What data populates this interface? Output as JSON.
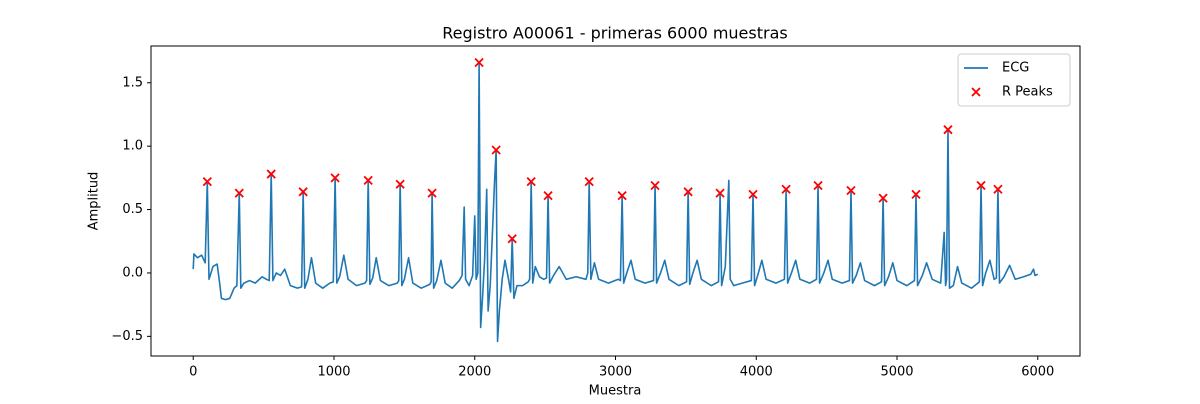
{
  "chart_data": {
    "type": "line",
    "title": "Registro A00061 - primeras 6000 muestras",
    "xlabel": "Muestra",
    "ylabel": "Amplitud",
    "xlim": [
      -300,
      6300
    ],
    "ylim": [
      -0.655,
      1.79
    ],
    "xticks": [
      0,
      1000,
      2000,
      3000,
      4000,
      5000,
      6000
    ],
    "yticks": [
      {
        "value": -0.5,
        "label": "−0.5"
      },
      {
        "value": 0,
        "label": "0.0"
      },
      {
        "value": 0.5,
        "label": "0.5"
      },
      {
        "value": 1,
        "label": "1.0"
      },
      {
        "value": 1.5,
        "label": "1.5"
      }
    ],
    "legend": "upper right",
    "series": [
      {
        "name": "ECG",
        "color": "#1f77b4",
        "marker": "line",
        "x": [
          0,
          5,
          30,
          60,
          85,
          100,
          112,
          140,
          170,
          190,
          200,
          230,
          260,
          290,
          310,
          327,
          338,
          360,
          400,
          440,
          490,
          520,
          540,
          554,
          566,
          590,
          620,
          650,
          690,
          740,
          770,
          781,
          792,
          815,
          840,
          870,
          920,
          970,
          995,
          1008,
          1020,
          1040,
          1070,
          1100,
          1160,
          1220,
          1232,
          1243,
          1255,
          1275,
          1300,
          1330,
          1390,
          1450,
          1460,
          1470,
          1482,
          1500,
          1530,
          1560,
          1620,
          1680,
          1690,
          1697,
          1708,
          1730,
          1760,
          1790,
          1840,
          1890,
          1910,
          1925,
          1935,
          1960,
          1985,
          2000,
          2010,
          2022,
          2031,
          2042,
          2055,
          2070,
          2085,
          2095,
          2110,
          2125,
          2140,
          2152,
          2162,
          2175,
          2195,
          2215,
          2240,
          2255,
          2266,
          2278,
          2300,
          2340,
          2380,
          2390,
          2401,
          2412,
          2430,
          2460,
          2490,
          2510,
          2521,
          2532,
          2560,
          2600,
          2650,
          2720,
          2790,
          2803,
          2813,
          2825,
          2850,
          2880,
          2950,
          3020,
          3035,
          3047,
          3058,
          3080,
          3110,
          3140,
          3210,
          3270,
          3281,
          3292,
          3320,
          3350,
          3380,
          3450,
          3505,
          3516,
          3527,
          3550,
          3580,
          3610,
          3680,
          3732,
          3743,
          3754,
          3780,
          3805,
          3815,
          3840,
          3900,
          3965,
          3977,
          3988,
          4010,
          4040,
          4070,
          4140,
          4200,
          4212,
          4223,
          4250,
          4280,
          4310,
          4380,
          4428,
          4439,
          4450,
          4480,
          4510,
          4540,
          4610,
          4662,
          4673,
          4684,
          4710,
          4740,
          4770,
          4840,
          4890,
          4901,
          4912,
          4940,
          4970,
          5000,
          5070,
          5124,
          5135,
          5146,
          5180,
          5210,
          5250,
          5310,
          5335,
          5345,
          5352,
          5362,
          5373,
          5400,
          5430,
          5460,
          5530,
          5585,
          5597,
          5608,
          5630,
          5660,
          5690,
          5706,
          5717,
          5728,
          5760,
          5800,
          5840,
          5900,
          5950,
          5970,
          5980,
          6000
        ],
        "values": [
          0.03,
          0.15,
          0.12,
          0.14,
          0.08,
          0.72,
          -0.05,
          0.05,
          0.07,
          -0.1,
          -0.2,
          -0.21,
          -0.2,
          -0.12,
          -0.1,
          0.63,
          -0.12,
          -0.08,
          -0.06,
          -0.08,
          -0.03,
          -0.05,
          -0.06,
          0.78,
          -0.06,
          0.0,
          -0.02,
          0.03,
          -0.1,
          -0.12,
          -0.11,
          0.64,
          -0.12,
          -0.05,
          0.12,
          -0.08,
          -0.12,
          -0.08,
          -0.07,
          0.75,
          -0.08,
          -0.03,
          0.14,
          -0.05,
          -0.1,
          -0.08,
          -0.06,
          0.73,
          -0.09,
          -0.04,
          0.12,
          -0.06,
          -0.1,
          -0.08,
          -0.06,
          0.7,
          -0.1,
          -0.05,
          0.12,
          -0.08,
          -0.12,
          -0.09,
          -0.07,
          0.63,
          -0.12,
          -0.06,
          0.1,
          -0.08,
          -0.12,
          -0.06,
          -0.02,
          0.52,
          -0.05,
          -0.1,
          -0.02,
          0.45,
          -0.05,
          0.0,
          1.66,
          -0.43,
          -0.2,
          0.1,
          0.66,
          -0.3,
          -0.1,
          0.3,
          0.7,
          0.97,
          -0.54,
          -0.3,
          -0.05,
          0.1,
          -0.05,
          -0.15,
          0.27,
          -0.2,
          -0.1,
          -0.1,
          -0.07,
          -0.05,
          0.72,
          -0.08,
          0.05,
          -0.03,
          -0.05,
          -0.04,
          0.61,
          -0.08,
          -0.02,
          0.05,
          -0.05,
          -0.03,
          -0.05,
          0.0,
          0.72,
          -0.05,
          0.08,
          -0.05,
          -0.08,
          -0.05,
          -0.06,
          0.61,
          -0.08,
          0.0,
          0.1,
          -0.05,
          -0.08,
          -0.06,
          0.69,
          -0.08,
          0.0,
          0.1,
          -0.05,
          -0.1,
          -0.07,
          0.64,
          -0.09,
          0.0,
          0.1,
          -0.05,
          -0.1,
          -0.07,
          0.63,
          -0.1,
          0.05,
          0.73,
          -0.05,
          -0.1,
          -0.08,
          -0.06,
          0.62,
          -0.1,
          -0.02,
          0.1,
          -0.05,
          -0.08,
          -0.05,
          0.66,
          -0.08,
          0.0,
          0.1,
          -0.05,
          -0.08,
          -0.05,
          0.69,
          -0.08,
          0.0,
          0.1,
          -0.05,
          -0.08,
          -0.06,
          0.65,
          -0.08,
          -0.02,
          0.08,
          -0.06,
          -0.1,
          -0.07,
          0.59,
          -0.1,
          -0.03,
          0.08,
          -0.06,
          -0.1,
          -0.06,
          0.62,
          -0.1,
          -0.02,
          0.08,
          -0.05,
          -0.08,
          0.32,
          -0.1,
          -0.05,
          1.13,
          -0.12,
          -0.1,
          0.05,
          -0.08,
          -0.12,
          -0.07,
          0.69,
          -0.1,
          0.0,
          0.1,
          -0.05,
          -0.04,
          0.66,
          -0.08,
          -0.03,
          0.06,
          -0.05,
          -0.03,
          -0.01,
          0.03,
          -0.02,
          -0.01
        ]
      },
      {
        "name": "R Peaks",
        "color": "#ff0000",
        "marker": "x",
        "x": [
          100,
          327,
          554,
          781,
          1008,
          1243,
          1470,
          1697,
          2031,
          2152,
          2266,
          2401,
          2521,
          2813,
          3047,
          3281,
          3516,
          3743,
          3977,
          4212,
          4439,
          4673,
          4901,
          5135,
          5362,
          5597,
          5717
        ],
        "values": [
          0.72,
          0.63,
          0.78,
          0.64,
          0.75,
          0.73,
          0.7,
          0.63,
          1.66,
          0.97,
          0.27,
          0.72,
          0.61,
          0.72,
          0.61,
          0.69,
          0.64,
          0.63,
          0.62,
          0.66,
          0.69,
          0.65,
          0.59,
          0.62,
          1.13,
          0.69,
          0.66
        ]
      }
    ]
  }
}
